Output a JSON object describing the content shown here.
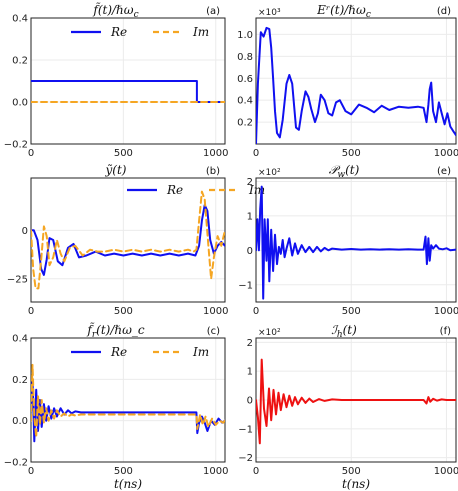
{
  "colors": {
    "re": "#1010f0",
    "im": "#f5a623",
    "red": "#ee1111",
    "grid": "#ebebeb",
    "frame": "#222222"
  },
  "chart_data": [
    {
      "id": "a",
      "type": "line",
      "title": "f̃(t)/ℏω_c",
      "letter": "(a)",
      "xlim": [
        0,
        1050
      ],
      "ylim": [
        -0.2,
        0.4
      ],
      "xticks": [
        0,
        500,
        1000
      ],
      "xtick_labels": [
        "0",
        "500",
        "1000"
      ],
      "yticks": [
        -0.2,
        0.0,
        0.2,
        0.4
      ],
      "ytick_labels": [
        "−0.2",
        "0.0",
        "0.2",
        "0.4"
      ],
      "multiplier": "",
      "xlabel": "",
      "legend": {
        "placement": "top-center",
        "entries": [
          "Re",
          "Im"
        ]
      },
      "series": [
        {
          "name": "Re",
          "style": "solid",
          "color": "#1010f0",
          "x": [
            0,
            898,
            898,
            902,
            1050
          ],
          "y": [
            0.1,
            0.1,
            0.0,
            0.0,
            0.0
          ]
        },
        {
          "name": "Im",
          "style": "dashed",
          "color": "#f5a623",
          "x": [
            0,
            1050
          ],
          "y": [
            0.0,
            0.0
          ]
        }
      ]
    },
    {
      "id": "d",
      "type": "line",
      "title": "Eʳ(t)/ℏω_c",
      "letter": "(d)",
      "xlim": [
        0,
        1050
      ],
      "ylim": [
        0,
        1.15
      ],
      "xticks": [
        0,
        500,
        1000
      ],
      "xtick_labels": [
        "0",
        "500",
        "1000"
      ],
      "yticks": [
        0.2,
        0.4,
        0.6,
        0.8,
        1.0
      ],
      "ytick_labels": [
        "0.2",
        "0.4",
        "0.6",
        "0.8",
        "1.0"
      ],
      "multiplier": "×10³",
      "xlabel": "",
      "series": [
        {
          "color": "#1010f0",
          "x": [
            0,
            10,
            25,
            40,
            55,
            70,
            80,
            90,
            100,
            110,
            125,
            140,
            160,
            175,
            190,
            200,
            210,
            225,
            240,
            260,
            275,
            290,
            310,
            325,
            340,
            360,
            380,
            400,
            420,
            440,
            470,
            500,
            540,
            580,
            620,
            660,
            700,
            750,
            800,
            850,
            880,
            895,
            905,
            912,
            920,
            930,
            945,
            960,
            975,
            990,
            1005,
            1020,
            1035,
            1050
          ],
          "y": [
            0.0,
            0.55,
            1.02,
            0.98,
            1.06,
            1.05,
            0.88,
            0.6,
            0.3,
            0.1,
            0.06,
            0.22,
            0.55,
            0.63,
            0.55,
            0.35,
            0.15,
            0.13,
            0.3,
            0.48,
            0.43,
            0.32,
            0.2,
            0.28,
            0.45,
            0.4,
            0.28,
            0.26,
            0.38,
            0.4,
            0.3,
            0.27,
            0.36,
            0.33,
            0.29,
            0.35,
            0.31,
            0.34,
            0.33,
            0.34,
            0.33,
            0.2,
            0.36,
            0.5,
            0.56,
            0.3,
            0.2,
            0.38,
            0.28,
            0.18,
            0.28,
            0.16,
            0.12,
            0.08
          ]
        }
      ]
    },
    {
      "id": "b",
      "type": "line",
      "title": "ỹ(t)",
      "letter": "(b)",
      "xlim": [
        0,
        1050
      ],
      "ylim": [
        -37,
        27
      ],
      "xticks": [
        0,
        500,
        1000
      ],
      "xtick_labels": [
        "0",
        "500",
        "1000"
      ],
      "yticks": [
        -25,
        0
      ],
      "ytick_labels": [
        "−25",
        "0"
      ],
      "multiplier": "",
      "xlabel": "",
      "legend": {
        "placement": "top-right",
        "entries": [
          "Re",
          "Im"
        ]
      },
      "series": [
        {
          "name": "Re",
          "style": "solid",
          "color": "#1010f0",
          "x": [
            0,
            15,
            35,
            55,
            70,
            85,
            100,
            120,
            145,
            170,
            200,
            230,
            260,
            300,
            350,
            400,
            450,
            500,
            550,
            600,
            650,
            700,
            750,
            800,
            850,
            890,
            910,
            925,
            940,
            955,
            970,
            990,
            1010,
            1030,
            1050
          ],
          "y": [
            0,
            0,
            -5,
            -20,
            -23,
            -15,
            -4,
            -5,
            -16,
            -18,
            -9,
            -7,
            -14,
            -13,
            -11,
            -13,
            -12,
            -13,
            -12,
            -13,
            -12,
            -13,
            -12,
            -13,
            -12,
            -13,
            -8,
            5,
            13,
            10,
            -5,
            -12,
            -8,
            -6,
            -8
          ]
        },
        {
          "name": "Im",
          "style": "dashed",
          "color": "#f5a623",
          "x": [
            0,
            12,
            25,
            40,
            55,
            70,
            85,
            100,
            120,
            140,
            160,
            180,
            210,
            240,
            280,
            320,
            360,
            400,
            450,
            500,
            550,
            600,
            650,
            700,
            750,
            800,
            850,
            880,
            895,
            910,
            925,
            940,
            960,
            975,
            990,
            1010,
            1030,
            1050
          ],
          "y": [
            0,
            -20,
            -30,
            -30,
            -15,
            2,
            -3,
            -18,
            -14,
            -5,
            -12,
            -16,
            -9,
            -8,
            -13,
            -10,
            -11,
            -11,
            -10,
            -11,
            -10,
            -11,
            -10,
            -11,
            -10,
            -11,
            -10,
            -11,
            -10,
            5,
            20,
            16,
            -8,
            -25,
            -14,
            -3,
            -8,
            0
          ]
        }
      ]
    },
    {
      "id": "e",
      "type": "line",
      "title": "𝒫_w(t)",
      "letter": "(e)",
      "xlim": [
        0,
        1050
      ],
      "ylim": [
        -1.5,
        2.1
      ],
      "xticks": [
        0,
        500,
        1000
      ],
      "xtick_labels": [
        "0",
        "500",
        "1000"
      ],
      "yticks": [
        -1,
        0,
        1,
        2
      ],
      "ytick_labels": [
        "−1",
        "0",
        "1",
        "2"
      ],
      "multiplier": "×10²",
      "xlabel": "",
      "series": [
        {
          "color": "#1010f0",
          "x": [
            0,
            8,
            15,
            22,
            30,
            38,
            45,
            55,
            62,
            70,
            80,
            90,
            100,
            110,
            120,
            130,
            140,
            150,
            160,
            175,
            190,
            205,
            220,
            240,
            260,
            280,
            300,
            320,
            340,
            360,
            380,
            400,
            450,
            500,
            550,
            600,
            650,
            700,
            750,
            800,
            850,
            880,
            890,
            897,
            905,
            912,
            920,
            930,
            945,
            960,
            980,
            1000,
            1020,
            1050
          ],
          "y": [
            0.0,
            0.9,
            0.0,
            1.2,
            1.85,
            -1.4,
            0.9,
            -0.3,
            0.9,
            -0.9,
            0.6,
            -0.6,
            0.45,
            -0.4,
            0.1,
            -0.1,
            0.3,
            -0.2,
            0.05,
            0.35,
            -0.15,
            0.2,
            -0.1,
            0.15,
            -0.05,
            0.1,
            -0.05,
            0.1,
            -0.03,
            0.07,
            0.0,
            0.05,
            0.02,
            0.04,
            0.02,
            0.03,
            0.02,
            0.03,
            0.02,
            0.03,
            0.02,
            0.02,
            0.4,
            -0.4,
            0.35,
            -0.3,
            0.15,
            0.05,
            0.15,
            0.05,
            0.03,
            0.06,
            0.0,
            0.02
          ]
        }
      ]
    },
    {
      "id": "c",
      "type": "line",
      "title": "f̃_r(t)/ℏω_c",
      "letter": "(c)",
      "xlim": [
        0,
        1050
      ],
      "ylim": [
        -0.2,
        0.4
      ],
      "xticks": [
        0,
        500,
        1000
      ],
      "xtick_labels": [
        "0",
        "500",
        "1000"
      ],
      "yticks": [
        -0.2,
        0.0,
        0.2,
        0.4
      ],
      "ytick_labels": [
        "−0.2",
        "0.0",
        "0.2",
        "0.4"
      ],
      "multiplier": "",
      "xlabel": "t(ns)",
      "legend": {
        "placement": "top-center",
        "entries": [
          "Re",
          "Im"
        ]
      },
      "series": [
        {
          "name": "Re",
          "style": "solid",
          "color": "#1010f0",
          "x": [
            0,
            8,
            18,
            28,
            38,
            48,
            58,
            70,
            82,
            95,
            110,
            125,
            140,
            160,
            180,
            200,
            220,
            240,
            270,
            300,
            350,
            400,
            450,
            500,
            550,
            600,
            650,
            700,
            750,
            800,
            850,
            895,
            900,
            910,
            925,
            940,
            955,
            975,
            995,
            1015,
            1035,
            1050
          ],
          "y": [
            0.08,
            0.2,
            -0.1,
            0.15,
            -0.05,
            0.1,
            -0.03,
            0.08,
            0.0,
            0.07,
            0.01,
            0.06,
            0.02,
            0.06,
            0.03,
            0.05,
            0.035,
            0.045,
            0.04,
            0.04,
            0.04,
            0.04,
            0.04,
            0.04,
            0.04,
            0.04,
            0.04,
            0.04,
            0.04,
            0.04,
            0.04,
            0.04,
            -0.06,
            -0.01,
            0.02,
            -0.01,
            -0.05,
            0.0,
            -0.02,
            0.01,
            -0.01,
            0.0
          ]
        },
        {
          "name": "Im",
          "style": "dashed",
          "color": "#f5a623",
          "x": [
            0,
            8,
            18,
            28,
            38,
            48,
            58,
            70,
            82,
            95,
            110,
            125,
            140,
            160,
            180,
            200,
            220,
            240,
            270,
            300,
            350,
            400,
            450,
            500,
            550,
            600,
            650,
            700,
            750,
            800,
            850,
            895,
            900,
            915,
            930,
            945,
            960,
            980,
            1000,
            1020,
            1040,
            1050
          ],
          "y": [
            0.0,
            0.27,
            0.02,
            -0.08,
            0.12,
            -0.02,
            0.1,
            -0.01,
            0.06,
            0.0,
            0.05,
            0.01,
            0.05,
            0.02,
            0.035,
            0.02,
            0.03,
            0.025,
            0.03,
            0.03,
            0.03,
            0.03,
            0.03,
            0.03,
            0.03,
            0.03,
            0.03,
            0.03,
            0.03,
            0.03,
            0.03,
            0.03,
            -0.04,
            0.03,
            -0.02,
            0.02,
            -0.03,
            0.01,
            -0.02,
            0.0,
            -0.01,
            0.0
          ]
        }
      ]
    },
    {
      "id": "f",
      "type": "line",
      "title": "ℐ_h(t)",
      "letter": "(f)",
      "xlim": [
        0,
        1050
      ],
      "ylim": [
        -2.15,
        2.15
      ],
      "xticks": [
        0,
        500,
        1000
      ],
      "xtick_labels": [
        "0",
        "500",
        "1000"
      ],
      "yticks": [
        -2,
        -1,
        0,
        1,
        2
      ],
      "ytick_labels": [
        "−2",
        "−1",
        "0",
        "1",
        "2"
      ],
      "multiplier": "×10²",
      "xlabel": "t(ns)",
      "series": [
        {
          "color": "#ee1111",
          "x": [
            0,
            10,
            20,
            30,
            42,
            55,
            68,
            80,
            92,
            105,
            118,
            130,
            145,
            160,
            175,
            190,
            205,
            220,
            240,
            260,
            280,
            300,
            330,
            360,
            400,
            450,
            500,
            550,
            600,
            650,
            700,
            750,
            800,
            850,
            880,
            895,
            905,
            915,
            930,
            950,
            975,
            1000,
            1050
          ],
          "y": [
            0.0,
            -0.6,
            -1.5,
            1.4,
            -0.3,
            -0.9,
            0.4,
            -0.7,
            0.35,
            -0.5,
            0.25,
            -0.35,
            0.2,
            -0.25,
            0.15,
            -0.2,
            0.1,
            -0.15,
            0.08,
            -0.1,
            0.05,
            -0.07,
            0.03,
            -0.03,
            0.02,
            0.0,
            0.0,
            0.0,
            0.0,
            0.0,
            0.0,
            0.0,
            0.0,
            0.0,
            0.0,
            -0.12,
            0.1,
            -0.06,
            0.04,
            -0.02,
            0.02,
            0.0,
            0.0
          ]
        }
      ]
    }
  ]
}
